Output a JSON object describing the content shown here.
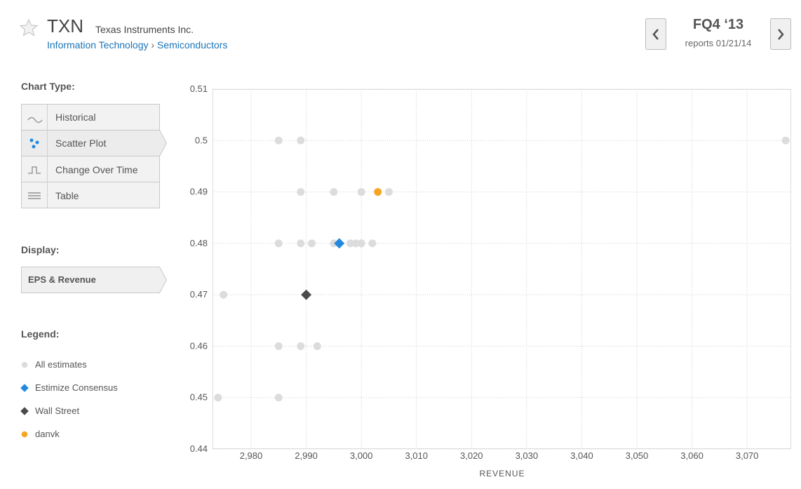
{
  "header": {
    "ticker": "TXN",
    "company": "Texas Instruments Inc.",
    "sector": "Information Technology",
    "separator": "›",
    "industry": "Semiconductors",
    "quarter": "FQ4 ‘13",
    "report_date": "reports 01/21/14"
  },
  "sidebar": {
    "chart_type_label": "Chart Type:",
    "chart_types": [
      "Historical",
      "Scatter Plot",
      "Change Over Time",
      "Table"
    ],
    "display_label": "Display:",
    "display_option": "EPS & Revenue",
    "legend_label": "Legend:"
  },
  "chart_data": {
    "type": "scatter",
    "x_label": "REVENUE",
    "xlim": [
      2973,
      3078
    ],
    "xticks": [
      {
        "value": 2980,
        "label": "2,980"
      },
      {
        "value": 2990,
        "label": "2,990"
      },
      {
        "value": 3000,
        "label": "3,000"
      },
      {
        "value": 3010,
        "label": "3,010"
      },
      {
        "value": 3020,
        "label": "3,020"
      },
      {
        "value": 3030,
        "label": "3,030"
      },
      {
        "value": 3040,
        "label": "3,040"
      },
      {
        "value": 3050,
        "label": "3,050"
      },
      {
        "value": 3060,
        "label": "3,060"
      },
      {
        "value": 3070,
        "label": "3,070"
      }
    ],
    "ylim": [
      0.44,
      0.51
    ],
    "yticks": [
      0.44,
      0.45,
      0.46,
      0.47,
      0.48,
      0.49,
      0.5,
      0.51
    ],
    "grid": true,
    "series": [
      {
        "name": "All estimates",
        "color": "#dcdcdc",
        "marker": "circle",
        "x": [
          2985,
          2989,
          3077,
          2989,
          2995,
          3000,
          3005,
          2985,
          2989,
          2991,
          2995,
          2998,
          2999,
          3000,
          3000,
          3002,
          2975,
          2985,
          2989,
          2992,
          2974,
          2985
        ],
        "values": [
          0.5,
          0.5,
          0.5,
          0.49,
          0.49,
          0.49,
          0.49,
          0.48,
          0.48,
          0.48,
          0.48,
          0.48,
          0.48,
          0.48,
          0.48,
          0.48,
          0.47,
          0.46,
          0.46,
          0.46,
          0.45,
          0.45
        ]
      },
      {
        "name": "Estimize Consensus",
        "color": "#2389de",
        "marker": "diamond",
        "x": [
          2996
        ],
        "values": [
          0.48
        ]
      },
      {
        "name": "Wall Street",
        "color": "#4a4a4a",
        "marker": "diamond",
        "x": [
          2990
        ],
        "values": [
          0.47
        ]
      },
      {
        "name": "danvk",
        "color": "#f5a623",
        "marker": "circle",
        "x": [
          3003
        ],
        "values": [
          0.49
        ]
      }
    ]
  }
}
